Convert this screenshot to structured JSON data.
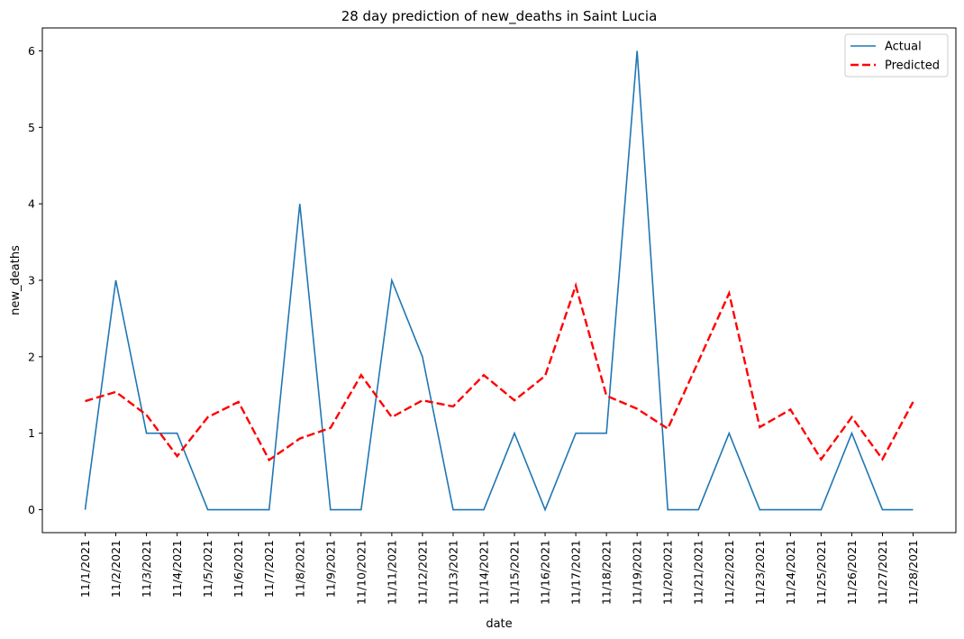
{
  "chart_data": {
    "type": "line",
    "title": "28 day prediction of new_deaths in Saint Lucia",
    "xlabel": "date",
    "ylabel": "new_deaths",
    "categories": [
      "11/1/2021",
      "11/2/2021",
      "11/3/2021",
      "11/4/2021",
      "11/5/2021",
      "11/6/2021",
      "11/7/2021",
      "11/8/2021",
      "11/9/2021",
      "11/10/2021",
      "11/11/2021",
      "11/12/2021",
      "11/13/2021",
      "11/14/2021",
      "11/15/2021",
      "11/16/2021",
      "11/17/2021",
      "11/18/2021",
      "11/19/2021",
      "11/20/2021",
      "11/21/2021",
      "11/22/2021",
      "11/23/2021",
      "11/24/2021",
      "11/25/2021",
      "11/26/2021",
      "11/27/2021",
      "11/28/2021"
    ],
    "yticks": [
      0,
      1,
      2,
      3,
      4,
      5,
      6
    ],
    "ylim": [
      -0.3,
      6.3
    ],
    "grid": false,
    "legend_position": "top-right",
    "series": [
      {
        "name": "Actual",
        "color": "#1f77b4",
        "style": "solid",
        "values": [
          0,
          3,
          1,
          1,
          0,
          0,
          0,
          4,
          0,
          0,
          3,
          2,
          0,
          0,
          1,
          0,
          1,
          1,
          6,
          0,
          0,
          1,
          0,
          0,
          0,
          1,
          0,
          0
        ]
      },
      {
        "name": "Predicted",
        "color": "#ff0000",
        "style": "dashed",
        "values": [
          1.42,
          1.54,
          1.24,
          0.7,
          1.21,
          1.41,
          0.65,
          0.93,
          1.07,
          1.76,
          1.21,
          1.43,
          1.35,
          1.76,
          1.43,
          1.75,
          2.93,
          1.49,
          1.32,
          1.06,
          1.94,
          2.83,
          1.08,
          1.31,
          0.66,
          1.21,
          0.66,
          1.41
        ]
      }
    ]
  }
}
